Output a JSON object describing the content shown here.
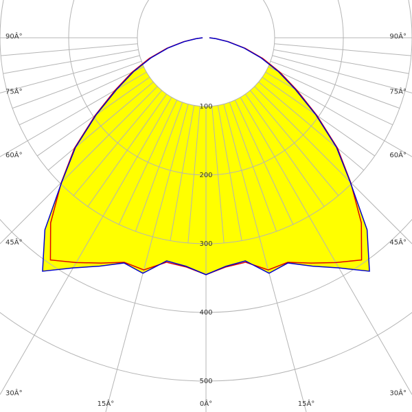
{
  "chart_data": {
    "type": "polar",
    "angles": [
      -90,
      -85,
      -80,
      -75,
      -70,
      -65,
      -60,
      -55,
      -50,
      -45,
      -40,
      -35,
      -30,
      -25,
      -20,
      -15,
      -10,
      -5,
      0,
      5,
      10,
      15,
      20,
      25,
      30,
      35,
      40,
      45,
      50,
      55,
      60,
      65,
      70,
      75,
      80,
      85,
      90
    ],
    "series": [
      {
        "color": "#0000cc",
        "fill": "#ffff00",
        "values": [
          5,
          14,
          32,
          57,
          85,
          116,
          150,
          195,
          248,
          297,
          365,
          415,
          387,
          367,
          349,
          355,
          330,
          334,
          345,
          334,
          330,
          355,
          349,
          367,
          387,
          415,
          365,
          297,
          248,
          195,
          150,
          116,
          85,
          57,
          32,
          14,
          5
        ]
      },
      {
        "color": "#dd0000",
        "values": [
          5,
          15,
          33,
          59,
          88,
          119,
          153,
          197,
          250,
          298,
          352,
          395,
          378,
          362,
          348,
          350,
          332,
          335,
          345,
          335,
          332,
          350,
          348,
          362,
          378,
          395,
          352,
          298,
          250,
          197,
          153,
          119,
          88,
          59,
          33,
          15,
          5
        ]
      }
    ],
    "rlim": [
      0,
      545
    ],
    "rticks": [
      100,
      200,
      300,
      400,
      500
    ],
    "angle_ticks": [
      {
        "value": -90,
        "label": "90Â°"
      },
      {
        "value": -75,
        "label": "75Â°"
      },
      {
        "value": -60,
        "label": "60Â°"
      },
      {
        "value": -45,
        "label": "45Â°"
      },
      {
        "value": -30,
        "label": "30Â°"
      },
      {
        "value": -15,
        "label": "15Â°"
      },
      {
        "value": 0,
        "label": "0Â°"
      },
      {
        "value": 15,
        "label": "15Â°"
      },
      {
        "value": 30,
        "label": "30Â°"
      },
      {
        "value": 45,
        "label": "45Â°"
      },
      {
        "value": 60,
        "label": "60Â°"
      },
      {
        "value": 75,
        "label": "75Â°"
      },
      {
        "value": 90,
        "label": "90Â°"
      }
    ],
    "grid": true
  }
}
